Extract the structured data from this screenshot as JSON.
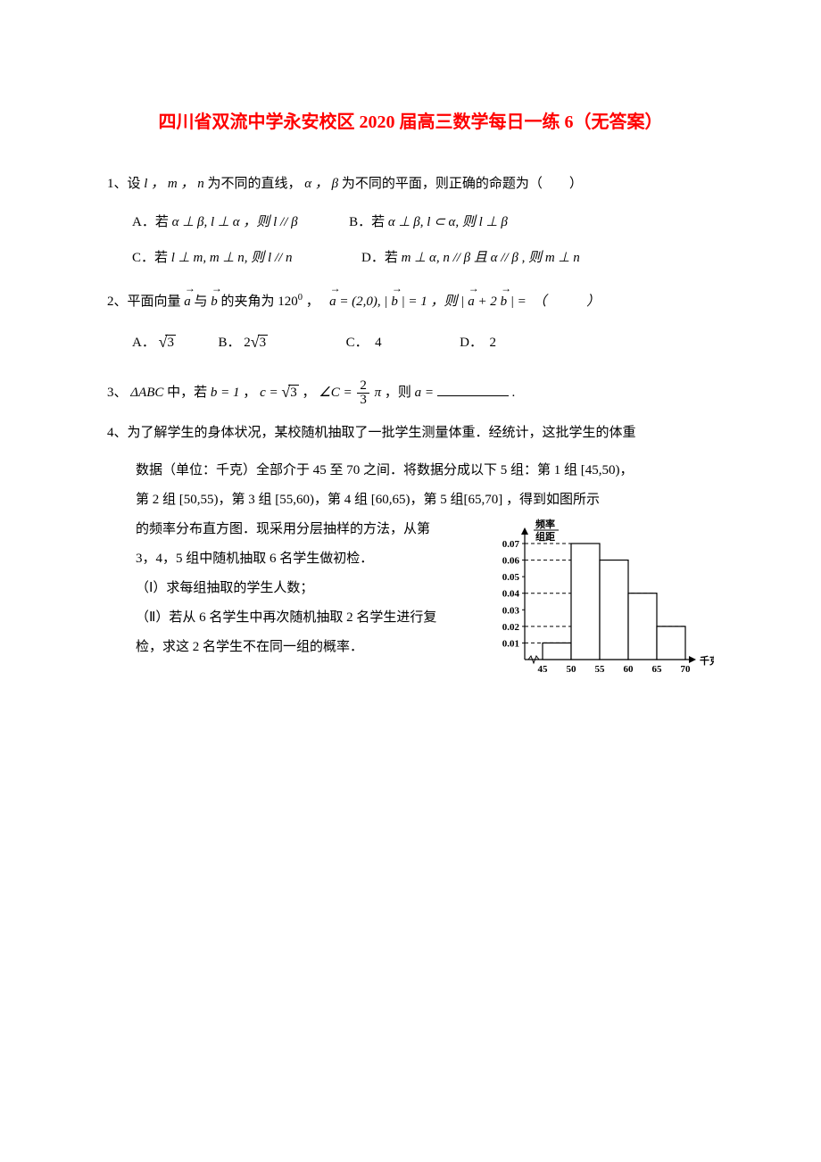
{
  "title": "四川省双流中学永安校区 2020 届高三数学每日一练 6（无答案）",
  "q1": {
    "stem_pre": "1、设",
    "lmn": "l ， m ， n",
    "stem_mid": "为不同的直线，",
    "ab": "α ， β",
    "stem_post": "为不同的平面，则正确的命题为（　　）",
    "A_label": "A．若",
    "A_math": "α ⊥ β, l ⊥ α ，则 l // β",
    "B_label": "B．若",
    "B_math": "α ⊥ β, l ⊂ α, 则 l ⊥ β",
    "C_label": "C．若",
    "C_math": "l ⊥ m, m ⊥ n, 则 l // n",
    "D_label": "D．若",
    "D_math": "m ⊥ α, n // β 且 α // β , 则 m ⊥ n"
  },
  "q2": {
    "stem_pre": "2、平面向量",
    "a": "a",
    "and": "与",
    "b": "b",
    "stem_mid1": "的夹角为",
    "angle": "120",
    "deg": "0",
    "comma1": "，　",
    "avec": "a",
    "eq1": " = (2,0), | ",
    "bvec": "b",
    "eq2": " | = 1 ，则 | ",
    "avec2": "a",
    "plus": " + 2",
    "bvec2": "b",
    "eq3": " | =　（　　　）",
    "A_label": "A．",
    "A_val": "3",
    "B_label": "B．",
    "B_val_pre": "2",
    "B_val": "3",
    "C_label": "C．　4",
    "D_label": "D．　2"
  },
  "q3": {
    "pre": "3、",
    "tri": "ΔABC",
    "mid1": "中，若",
    "b": "b = 1",
    "c_pre": "c = ",
    "c_val": "3",
    "angC_pre": "∠C = ",
    "frac_num": "2",
    "frac_den": "3",
    "pi": "π",
    "then": "，则",
    "a": "a = ",
    "period": "."
  },
  "q4": {
    "line1": "4、为了解学生的身体状况，某校随机抽取了一批学生测量体重．经统计，这批学生的体重",
    "line2": "数据（单位：千克）全部介于 45 至 70 之间．将数据分成以下 5 组：第 1 组 [45,50)，",
    "line3": "第 2 组 [50,55)，第 3 组 [55,60)，第 4 组 [60,65)，第 5 组[65,70] ，得到如图所示",
    "line4": "的频率分布直方图．现采用分层抽样的方法，从第",
    "line5": "3，4，5 组中随机抽取 6 名学生做初检．",
    "line6": "（Ⅰ）求每组抽取的学生人数；",
    "line7": "（Ⅱ）若从 6 名学生中再次随机抽取 2 名学生进行复",
    "line8": "检，求这 2 名学生不在同一组的概率．"
  },
  "hist": {
    "y_label_top": "频率",
    "y_label_bot": "组距",
    "x_label": "千克",
    "y_ticks": [
      "0.01",
      "0.02",
      "0.03",
      "0.04",
      "0.05",
      "0.06",
      "0.07"
    ],
    "x_ticks": [
      "45",
      "50",
      "55",
      "60",
      "65",
      "70"
    ],
    "bars": [
      0.01,
      0.07,
      0.06,
      0.04,
      0.02
    ],
    "axis_color": "#000000",
    "bar_stroke": "#000000",
    "bar_fill": "#ffffff",
    "grid_color": "#000000",
    "font_size": 11
  }
}
